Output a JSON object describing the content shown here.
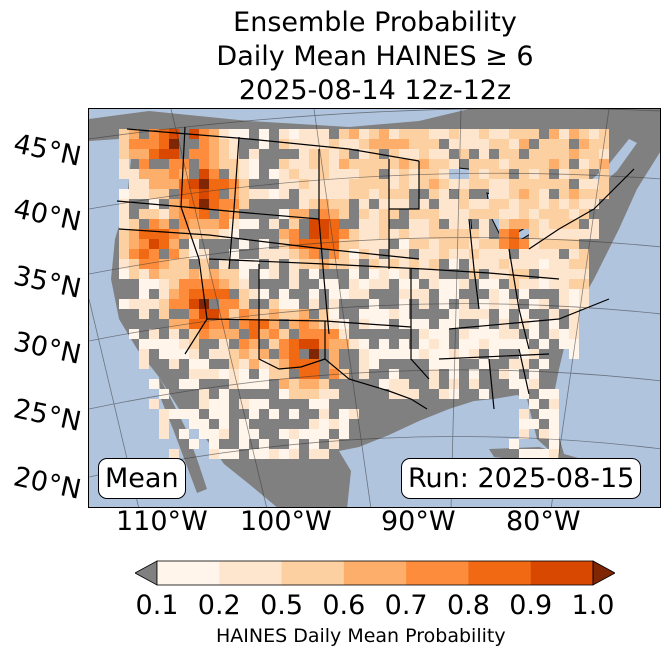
{
  "title": {
    "line1": "Ensemble Probability",
    "line2": "Daily Mean HAINES ≥ 6",
    "line3": "2025-08-14 12z-12z"
  },
  "axes": {
    "lat_labels": [
      "45°N",
      "40°N",
      "35°N",
      "30°N",
      "25°N",
      "20°N"
    ],
    "lon_labels": [
      "110°W",
      "100°W",
      "90°W",
      "80°W"
    ]
  },
  "map_labels": {
    "mean": "Mean",
    "run": "Run: 2025-08-15"
  },
  "colorbar": {
    "ticks": [
      "0.1",
      "0.2",
      "0.5",
      "0.6",
      "0.7",
      "0.8",
      "0.9",
      "1.0"
    ],
    "label": "HAINES Daily Mean Probability",
    "under_color": "#808080",
    "over_color": "#7f2704",
    "colors": [
      "#fff5eb",
      "#fee6ce",
      "#fdd0a2",
      "#fdae6b",
      "#fd8d3c",
      "#f16913",
      "#d94801"
    ]
  },
  "colors": {
    "ocean": "#b0c4de",
    "land": "#808080"
  }
}
